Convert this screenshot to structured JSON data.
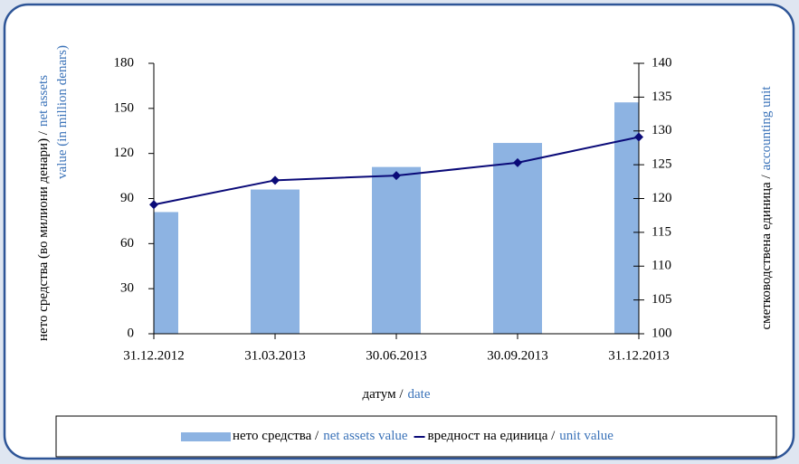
{
  "chart_data": {
    "type": "bar-line",
    "categories": [
      "31.12.2012",
      "31.03.2013",
      "30.06.2013",
      "30.09.2013",
      "31.12.2013"
    ],
    "series": [
      {
        "name_mk": "нето средства /",
        "name_en": "net assets value",
        "type": "bar",
        "axis": "y",
        "color": "#8db3e2",
        "values": [
          81,
          96,
          111,
          127,
          154
        ]
      },
      {
        "name_mk": "вредност на единица /",
        "name_en": "unit value",
        "type": "line",
        "axis": "y2",
        "color": "#0a0a78",
        "values": [
          119.1,
          122.7,
          123.4,
          125.3,
          129.1
        ]
      }
    ],
    "ylabel": {
      "line1_mk": "нето средства (во милиони денари) /",
      "line1_en": "net assets",
      "line2_en": "value (in million denars)"
    },
    "y2label": {
      "mk": "сметководствена единица /",
      "en": "accounting unit"
    },
    "xlabel": {
      "mk": "датум /",
      "en": "date"
    },
    "ylim": [
      0,
      180
    ],
    "yticks": [
      0,
      30,
      60,
      90,
      120,
      150,
      180
    ],
    "y2lim": [
      100,
      140
    ],
    "y2ticks": [
      100,
      105,
      110,
      115,
      120,
      125,
      130,
      135,
      140
    ],
    "legend": "bottom"
  }
}
